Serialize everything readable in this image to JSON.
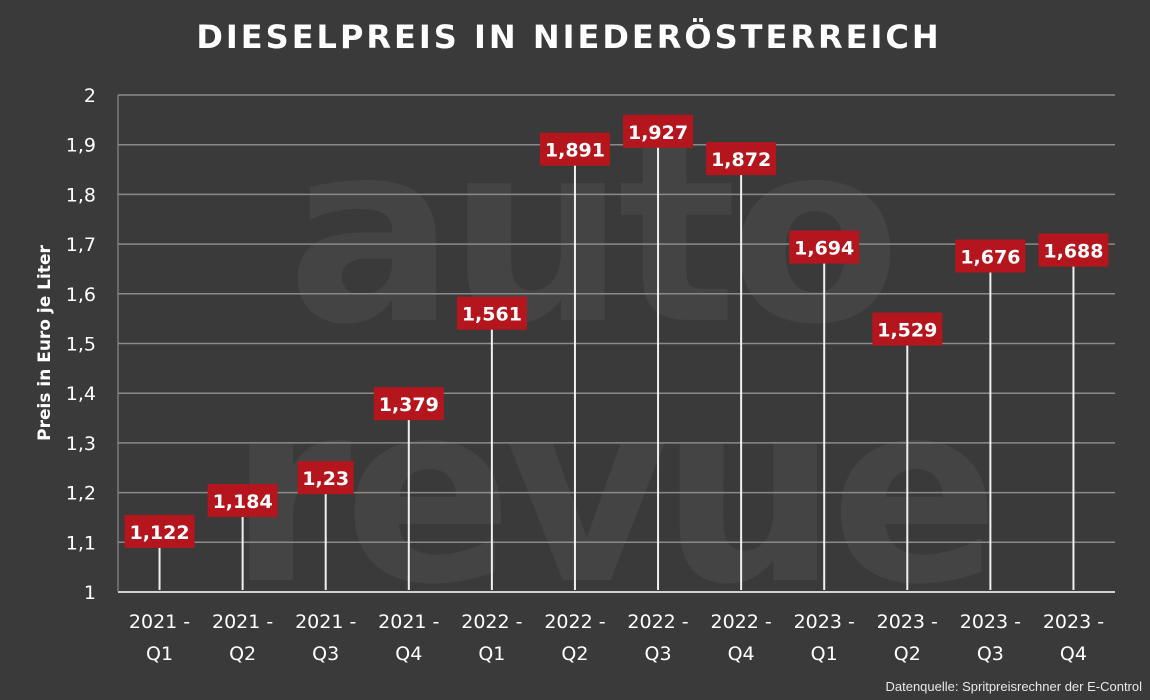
{
  "chart_data": {
    "type": "lollipop",
    "title": "DIESELPREIS IN NIEDERÖSTERREICH",
    "ylabel": "Preis in Euro je Liter",
    "xlabel": "",
    "ylim": [
      1,
      2
    ],
    "yticks": [
      "1",
      "1,1",
      "1,2",
      "1,3",
      "1,4",
      "1,5",
      "1,6",
      "1,7",
      "1,8",
      "1,9",
      "2"
    ],
    "categories": [
      [
        "2021 -",
        "Q1"
      ],
      [
        "2021 -",
        "Q2"
      ],
      [
        "2021 -",
        "Q3"
      ],
      [
        "2021 -",
        "Q4"
      ],
      [
        "2022 -",
        "Q1"
      ],
      [
        "2022 -",
        "Q2"
      ],
      [
        "2022 -",
        "Q3"
      ],
      [
        "2022 -",
        "Q4"
      ],
      [
        "2023 -",
        "Q1"
      ],
      [
        "2023 -",
        "Q2"
      ],
      [
        "2023 -",
        "Q3"
      ],
      [
        "2023 -",
        "Q4"
      ]
    ],
    "values": [
      1.122,
      1.184,
      1.23,
      1.379,
      1.561,
      1.891,
      1.927,
      1.872,
      1.694,
      1.529,
      1.676,
      1.688
    ],
    "labels": [
      "1,122",
      "1,184",
      "1,23",
      "1,379",
      "1,561",
      "1,891",
      "1,927",
      "1,872",
      "1,694",
      "1,529",
      "1,676",
      "1,688"
    ],
    "grid": true,
    "source": "Datenquelle: Spritpreisrechner der E-Control",
    "watermark": [
      "auto",
      "revue"
    ],
    "colors": {
      "background": "#3a3a3a",
      "label_box": "#b5161e",
      "stem": "#f0f0f0",
      "grid": "#8a8a8a",
      "text": "#ffffff",
      "watermark": "#444444"
    }
  }
}
